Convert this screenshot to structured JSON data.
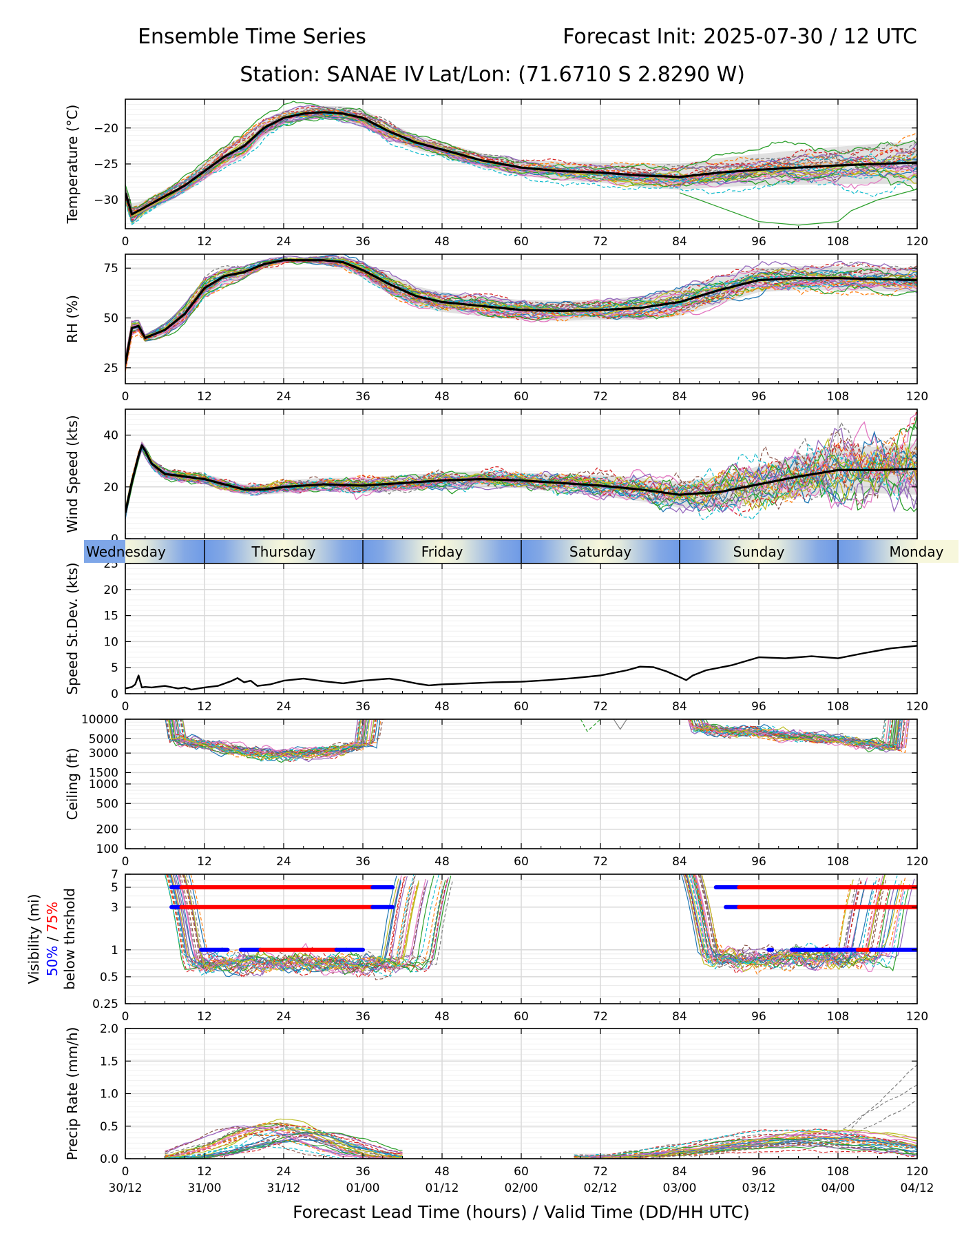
{
  "header": {
    "title_left": "Ensemble Time Series",
    "title_right": "Forecast Init: 2025-07-30 / 12 UTC",
    "station": "Station: SANAE IV",
    "latlon": "Lat/Lon: (71.6710 S 2.8290 W)"
  },
  "xaxis": {
    "label": "Forecast Lead Time (hours) / Valid Time (DD/HH UTC)",
    "range": [
      0,
      120
    ],
    "ticks": [
      0,
      12,
      24,
      36,
      48,
      60,
      72,
      84,
      96,
      108,
      120
    ],
    "tick_labels": [
      "0",
      "12",
      "24",
      "36",
      "48",
      "60",
      "72",
      "84",
      "96",
      "108",
      "120"
    ],
    "valid_time_labels": [
      "30/12",
      "31/00",
      "31/12",
      "01/00",
      "01/12",
      "02/00",
      "02/12",
      "03/00",
      "03/12",
      "04/00",
      "04/12"
    ]
  },
  "day_band": {
    "days": [
      "Wednesday",
      "Thursday",
      "Friday",
      "Saturday",
      "Sunday",
      "Monday"
    ],
    "boundaries": [
      12,
      36,
      60,
      84,
      108
    ],
    "colors": {
      "night": "#6f9be6",
      "day": "#f7f7dc"
    }
  },
  "series_colors": [
    "#1f77b4",
    "#ff7f0e",
    "#2ca02c",
    "#d62728",
    "#9467bd",
    "#8c564b",
    "#e377c2",
    "#7f7f7f",
    "#bcbd22",
    "#17becf"
  ],
  "chart_data": [
    {
      "type": "line",
      "panel": "temperature",
      "ylabel": "Temperature (°C)",
      "ylim": [
        -34,
        -16
      ],
      "yticks": [
        -30,
        -25,
        -20
      ],
      "ytick_labels": [
        "−30",
        "−25",
        "−20"
      ],
      "grid": true,
      "mean": {
        "x": [
          0,
          1,
          2,
          3,
          6,
          9,
          12,
          15,
          18,
          21,
          24,
          27,
          30,
          33,
          36,
          40,
          44,
          48,
          54,
          60,
          66,
          72,
          78,
          84,
          90,
          96,
          102,
          108,
          114,
          120
        ],
        "y": [
          -29,
          -32,
          -31.5,
          -31,
          -29.5,
          -28,
          -26,
          -24,
          -22.5,
          -20,
          -18.6,
          -18,
          -17.8,
          -18,
          -18.6,
          -20.5,
          -22,
          -23,
          -24.5,
          -25.5,
          -26,
          -26.2,
          -26.6,
          -26.8,
          -26.2,
          -25.8,
          -25.5,
          -25.2,
          -25,
          -24.8
        ]
      },
      "spread": [
        1.2,
        1.5,
        1.2,
        1.0,
        1.0,
        1.0,
        1.2,
        1.4,
        1.5,
        1.2,
        1.0,
        0.9,
        0.9,
        1.0,
        1.2,
        1.2,
        1.0,
        1.0,
        1.0,
        1.1,
        1.3,
        1.4,
        1.6,
        1.8,
        2.0,
        2.2,
        2.4,
        2.6,
        2.8,
        3.0
      ]
    },
    {
      "type": "line",
      "panel": "rh",
      "ylabel": "RH (%)",
      "ylim": [
        17,
        82
      ],
      "yticks": [
        25,
        50,
        75
      ],
      "ytick_labels": [
        "25",
        "50",
        "75"
      ],
      "grid": true,
      "mean": {
        "x": [
          0,
          1,
          2,
          3,
          6,
          9,
          12,
          15,
          18,
          21,
          24,
          27,
          30,
          33,
          36,
          40,
          44,
          48,
          54,
          60,
          66,
          72,
          78,
          84,
          90,
          96,
          102,
          108,
          114,
          120
        ],
        "y": [
          27,
          45,
          46,
          40,
          44,
          52,
          65,
          71,
          73,
          77,
          79,
          79,
          79,
          78,
          74,
          67,
          61,
          58,
          56,
          54,
          53.5,
          54,
          55,
          58,
          64,
          69,
          70,
          70,
          69.5,
          69
        ]
      },
      "spread": [
        3,
        3,
        3,
        2,
        3,
        4,
        5,
        4,
        3,
        2,
        1.5,
        1.5,
        2,
        3,
        4,
        5,
        5,
        5,
        5,
        5,
        5,
        5,
        6,
        7,
        7,
        6,
        6,
        6,
        6,
        6
      ]
    },
    {
      "type": "line",
      "panel": "wind_speed",
      "ylabel": "Wind Speed (kts)",
      "ylim": [
        0,
        50
      ],
      "yticks": [
        0,
        20,
        40
      ],
      "ytick_labels": [
        "0",
        "20",
        "40"
      ],
      "grid": true,
      "mean": {
        "x": [
          0,
          1,
          2,
          2.5,
          3,
          4,
          6,
          9,
          12,
          15,
          18,
          21,
          24,
          30,
          36,
          42,
          48,
          54,
          60,
          66,
          72,
          78,
          84,
          90,
          96,
          102,
          108,
          114,
          120
        ],
        "y": [
          10,
          22,
          32,
          36,
          34,
          29,
          25,
          24,
          23,
          21,
          19,
          19,
          20,
          21,
          20.5,
          21.5,
          22.5,
          23,
          22.5,
          21.5,
          20.5,
          19,
          17,
          18,
          21,
          24,
          26.5,
          26.5,
          27
        ]
      },
      "spread": [
        2,
        2,
        2,
        2,
        2,
        2,
        2,
        2,
        2,
        2,
        2,
        2,
        2.5,
        2.5,
        3,
        3,
        3,
        3,
        3,
        3.5,
        4,
        4.5,
        5,
        6,
        7,
        8,
        9,
        9,
        10
      ]
    },
    {
      "type": "line",
      "panel": "speed_stdev",
      "ylabel": "Speed St.Dev. (kts)",
      "ylim": [
        0,
        25
      ],
      "yticks": [
        0,
        5,
        10,
        15,
        20,
        25
      ],
      "ytick_labels": [
        "0",
        "5",
        "10",
        "15",
        "20",
        "25"
      ],
      "grid": true,
      "series": [
        {
          "x": [
            0,
            1,
            1.5,
            2,
            2.5,
            3,
            4,
            6,
            8,
            9,
            10,
            12,
            14,
            16,
            17,
            18,
            19,
            20,
            22,
            24,
            27,
            30,
            33,
            36,
            40,
            42,
            44,
            46,
            48,
            52,
            56,
            60,
            64,
            68,
            72,
            76,
            78,
            80,
            82,
            84,
            85,
            86,
            88,
            92,
            96,
            100,
            104,
            108,
            112,
            116,
            120
          ],
          "y": [
            1,
            1.3,
            1.8,
            3.5,
            1.2,
            1.3,
            1.2,
            1.5,
            1.0,
            1.2,
            0.8,
            1.2,
            1.5,
            2.4,
            3.0,
            2.2,
            2.5,
            1.5,
            1.8,
            2.5,
            2.9,
            2.4,
            2.0,
            2.5,
            2.9,
            2.5,
            2.0,
            1.6,
            1.8,
            2.0,
            2.2,
            2.3,
            2.6,
            3.0,
            3.5,
            4.5,
            5.2,
            5.1,
            4.3,
            3.2,
            2.6,
            3.5,
            4.5,
            5.5,
            7.0,
            6.8,
            7.2,
            6.8,
            7.8,
            8.7,
            9.2
          ]
        }
      ]
    },
    {
      "type": "line",
      "panel": "ceiling",
      "ylabel": "Ceiling (ft)",
      "yscale": "log",
      "ylim": [
        100,
        10000
      ],
      "yticks": [
        100,
        200,
        500,
        1000,
        1500,
        3000,
        5000,
        10000
      ],
      "ytick_labels": [
        "100",
        "200",
        "500",
        "1000",
        "1500",
        "3000",
        "5000",
        "10000"
      ],
      "grid": true
    },
    {
      "type": "line",
      "panel": "visibility",
      "ylabel": "Visibility (mi)",
      "ylabel_pct50": "50%",
      "ylabel_slash": " / ",
      "ylabel_pct75": "75%",
      "ylabel_sub": "below thrshold",
      "yscale": "log",
      "ylim": [
        0.25,
        7
      ],
      "yticks": [
        0.25,
        0.5,
        1,
        3,
        5,
        7
      ],
      "ytick_labels": [
        "0.25",
        "0.5",
        "1",
        "3",
        "5",
        "7"
      ],
      "grid": true,
      "threshold_bars": [
        {
          "level": 5,
          "color": "blue",
          "start": 7,
          "end": 8.5
        },
        {
          "level": 5,
          "color": "red",
          "start": 8.5,
          "end": 37.5
        },
        {
          "level": 5,
          "color": "blue",
          "start": 37.5,
          "end": 40.5
        },
        {
          "level": 3,
          "color": "blue",
          "start": 7,
          "end": 8.5
        },
        {
          "level": 3,
          "color": "red",
          "start": 8.5,
          "end": 37.5
        },
        {
          "level": 3,
          "color": "blue",
          "start": 37.5,
          "end": 40.5
        },
        {
          "level": 1,
          "color": "blue",
          "start": 11.5,
          "end": 15.5
        },
        {
          "level": 1,
          "color": "blue",
          "start": 17.5,
          "end": 20.5
        },
        {
          "level": 1,
          "color": "red",
          "start": 20.5,
          "end": 32
        },
        {
          "level": 1,
          "color": "blue",
          "start": 32,
          "end": 36
        },
        {
          "level": 5,
          "color": "blue",
          "start": 89.5,
          "end": 93
        },
        {
          "level": 5,
          "color": "red",
          "start": 93,
          "end": 120
        },
        {
          "level": 3,
          "color": "blue",
          "start": 91,
          "end": 93
        },
        {
          "level": 3,
          "color": "red",
          "start": 93,
          "end": 120
        },
        {
          "level": 1,
          "color": "blue",
          "start": 97.5,
          "end": 98
        },
        {
          "level": 1,
          "color": "blue",
          "start": 101,
          "end": 111
        },
        {
          "level": 1,
          "color": "red",
          "start": 111,
          "end": 113
        },
        {
          "level": 1,
          "color": "blue",
          "start": 113,
          "end": 120
        }
      ]
    },
    {
      "type": "line",
      "panel": "precip_rate",
      "ylabel": "Precip Rate (mm/h)",
      "ylim": [
        0,
        2
      ],
      "yticks": [
        0,
        0.5,
        1,
        1.5,
        2
      ],
      "ytick_labels": [
        "0.0",
        "0.5",
        "1.0",
        "1.5",
        "2.0"
      ],
      "grid": true
    }
  ]
}
